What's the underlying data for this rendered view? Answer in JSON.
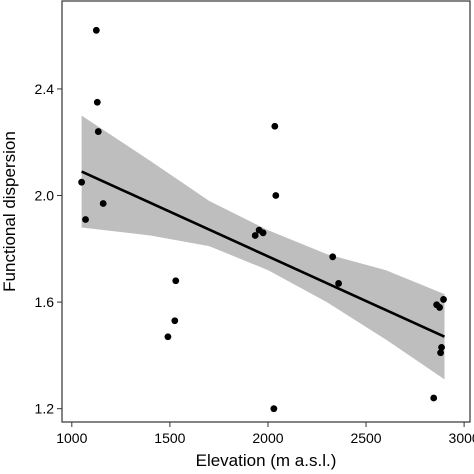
{
  "chart_data": {
    "type": "scatter",
    "title": "",
    "xlabel": "Elevation (m a.s.l.)",
    "ylabel": "Functional dispersion",
    "xlim": [
      950,
      3030
    ],
    "ylim": [
      1.15,
      2.73
    ],
    "x_ticks": [
      1000,
      1500,
      2000,
      2500,
      3000
    ],
    "x_tick_labels": [
      "1000",
      "1500",
      "2000",
      "2500",
      "3000"
    ],
    "y_ticks": [
      1.2,
      1.6,
      2.0,
      2.4
    ],
    "y_tick_labels": [
      "1.2",
      "1.6",
      "2.0",
      "2.4"
    ],
    "grid": false,
    "legend": "none",
    "points": [
      {
        "x": 1125,
        "y": 2.62
      },
      {
        "x": 1130,
        "y": 2.35
      },
      {
        "x": 1135,
        "y": 2.24
      },
      {
        "x": 1050,
        "y": 2.05
      },
      {
        "x": 1070,
        "y": 1.91
      },
      {
        "x": 1160,
        "y": 1.97
      },
      {
        "x": 1530,
        "y": 1.68
      },
      {
        "x": 1525,
        "y": 1.53
      },
      {
        "x": 1490,
        "y": 1.47
      },
      {
        "x": 1935,
        "y": 1.85
      },
      {
        "x": 1955,
        "y": 1.87
      },
      {
        "x": 1975,
        "y": 1.86
      },
      {
        "x": 2035,
        "y": 2.26
      },
      {
        "x": 2040,
        "y": 2.0
      },
      {
        "x": 2030,
        "y": 1.2
      },
      {
        "x": 2330,
        "y": 1.77
      },
      {
        "x": 2360,
        "y": 1.67
      },
      {
        "x": 2845,
        "y": 1.24
      },
      {
        "x": 2860,
        "y": 1.59
      },
      {
        "x": 2875,
        "y": 1.58
      },
      {
        "x": 2880,
        "y": 1.41
      },
      {
        "x": 2885,
        "y": 1.43
      },
      {
        "x": 2895,
        "y": 1.61
      }
    ],
    "fit_line": {
      "x": [
        1050,
        2900
      ],
      "y": [
        2.09,
        1.47
      ]
    },
    "confidence_band": {
      "x": [
        1050,
        1400,
        1700,
        2000,
        2300,
        2600,
        2900
      ],
      "lower": [
        1.88,
        1.85,
        1.81,
        1.72,
        1.6,
        1.46,
        1.31
      ],
      "upper": [
        2.3,
        2.13,
        1.98,
        1.87,
        1.78,
        1.72,
        1.63
      ]
    },
    "colors": {
      "points": "#000000",
      "line": "#000000",
      "band": "#bebebe",
      "frame": "#333333",
      "background": "#ffffff"
    }
  }
}
